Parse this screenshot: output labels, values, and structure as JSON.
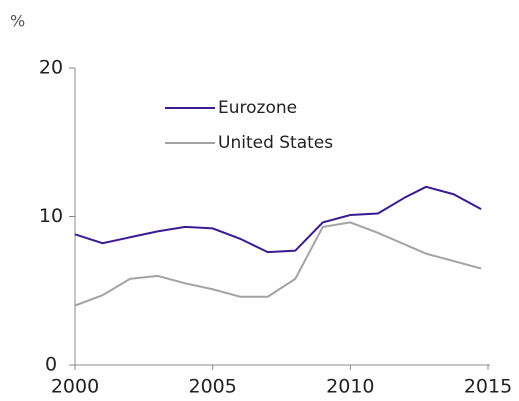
{
  "chart_data": {
    "type": "line",
    "y_unit": "%",
    "x": [
      2000,
      2001,
      2002,
      2003,
      2004,
      2005,
      2006,
      2007,
      2008,
      2009,
      2010,
      2011,
      2012,
      2012.75,
      2013.75,
      2014.75
    ],
    "series": [
      {
        "name": "Eurozone",
        "color": "#3d1a8f",
        "values": [
          8.8,
          8.2,
          8.6,
          9.0,
          9.3,
          9.2,
          8.5,
          7.6,
          7.7,
          9.6,
          10.1,
          10.2,
          11.3,
          12.0,
          11.5,
          10.5
        ]
      },
      {
        "name": "United States",
        "color": "#a3a3a3",
        "values": [
          4.0,
          4.7,
          5.8,
          6.0,
          5.5,
          5.1,
          4.6,
          4.6,
          5.8,
          9.3,
          9.6,
          8.9,
          8.1,
          7.5,
          7.0,
          6.5
        ]
      }
    ],
    "xlim": [
      2000,
      2015
    ],
    "xticks": [
      2000,
      2005,
      2010,
      2015
    ],
    "ylim": [
      0,
      20
    ],
    "yticks": [
      0,
      10,
      20
    ]
  }
}
